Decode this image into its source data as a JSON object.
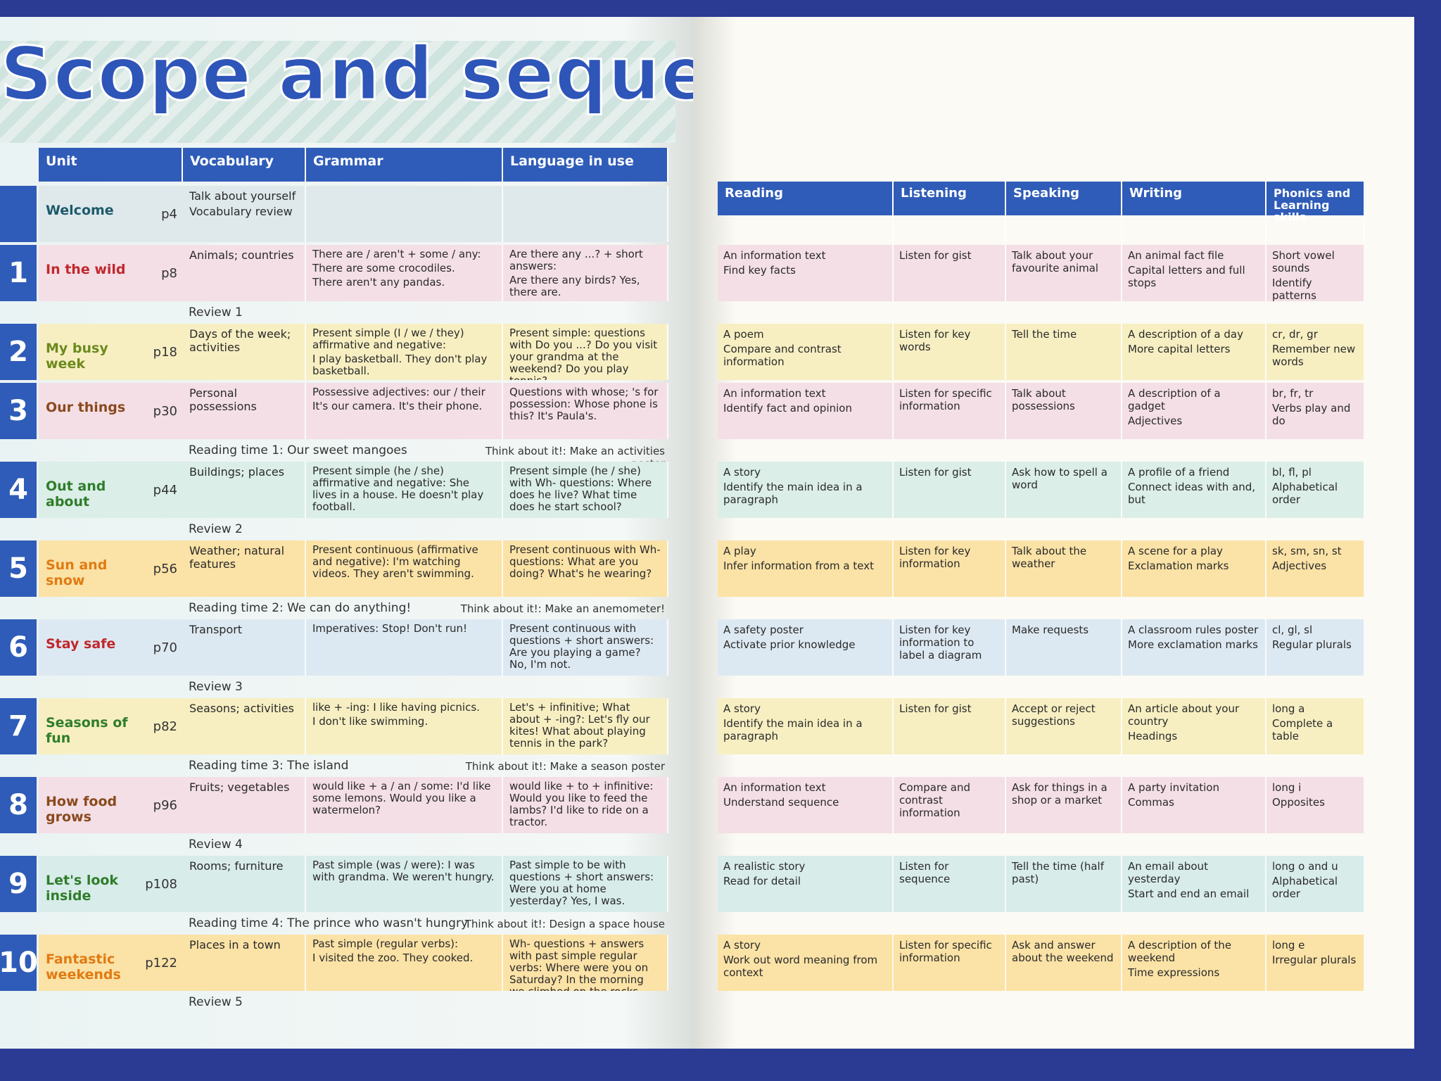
{
  "title": "Scope and sequence",
  "left_headers": [
    "Unit",
    "Vocabulary",
    "Grammar",
    "Language in use"
  ],
  "right_headers": [
    "Reading",
    "Listening",
    "Speaking",
    "Writing",
    "Phonics and Learning skills"
  ],
  "units": [
    {
      "name": "Welcome",
      "page": "p4",
      "vocabulary": [
        "Talk about yourself",
        "Vocabulary review"
      ]
    },
    {
      "number": "1",
      "name": "In the wild",
      "page": "p8",
      "vocabulary": [
        "Animals; countries"
      ],
      "grammar": [
        "There are / aren't + some / any:",
        "There are some crocodiles.",
        "There aren't any pandas."
      ],
      "language": [
        "Are there any ...? + short answers:",
        "Are there any birds? Yes, there are."
      ],
      "reading": [
        "An information text",
        "Find key facts"
      ],
      "listening": [
        "Listen for gist"
      ],
      "speaking": [
        "Talk about your favourite animal"
      ],
      "writing": [
        "An animal fact file",
        "Capital letters and full stops"
      ],
      "phonics": [
        "Short vowel sounds",
        "Identify patterns"
      ],
      "after": {
        "text": "Review 1"
      }
    },
    {
      "number": "2",
      "name": "My busy week",
      "page": "p18",
      "vocabulary": [
        "Days of the week; activities"
      ],
      "grammar": [
        "Present simple (I / we / they) affirmative and negative:",
        "I play basketball. They don't play basketball."
      ],
      "language": [
        "Present simple: questions with Do you ...? Do you visit your grandma at the weekend? Do you play tennis?"
      ],
      "reading": [
        "A poem",
        "Compare and contrast information"
      ],
      "listening": [
        "Listen for key words"
      ],
      "speaking": [
        "Tell the time"
      ],
      "writing": [
        "A description of a day",
        "More capital letters"
      ],
      "phonics": [
        "cr, dr, gr",
        "Remember new words"
      ]
    },
    {
      "number": "3",
      "name": "Our things",
      "page": "p30",
      "vocabulary": [
        "Personal possessions"
      ],
      "grammar": [
        "Possessive adjectives: our / their",
        "It's our camera. It's their phone."
      ],
      "language": [
        "Questions with whose; 's for possession: Whose phone is this? It's Paula's."
      ],
      "reading": [
        "An information text",
        "Identify fact and opinion"
      ],
      "listening": [
        "Listen for specific information"
      ],
      "speaking": [
        "Talk about possessions"
      ],
      "writing": [
        "A description of a gadget",
        "Adjectives"
      ],
      "phonics": [
        "br, fr, tr",
        "Verbs play and do"
      ],
      "after": {
        "text": "Reading time 1: Our sweet mangoes",
        "think": "Think about it!: Make an activities poster"
      }
    },
    {
      "number": "4",
      "name": "Out and about",
      "page": "p44",
      "vocabulary": [
        "Buildings; places"
      ],
      "grammar": [
        "Present simple (he / she) affirmative and negative: She lives in a house. He doesn't play football."
      ],
      "language": [
        "Present simple (he / she) with Wh- questions: Where does he live? What time does he start school?"
      ],
      "reading": [
        "A story",
        "Identify the main idea in a paragraph"
      ],
      "listening": [
        "Listen for gist"
      ],
      "speaking": [
        "Ask how to spell a word"
      ],
      "writing": [
        "A profile of a friend",
        "Connect ideas with and, but"
      ],
      "phonics": [
        "bl, fl, pl",
        "Alphabetical order"
      ],
      "after": {
        "text": "Review 2"
      }
    },
    {
      "number": "5",
      "name": "Sun and snow",
      "page": "p56",
      "vocabulary": [
        "Weather; natural features"
      ],
      "grammar": [
        "Present continuous (affirmative and negative): I'm watching videos. They aren't swimming."
      ],
      "language": [
        "Present continuous with Wh- questions: What are you doing? What's he wearing?"
      ],
      "reading": [
        "A play",
        "Infer information from a text"
      ],
      "listening": [
        "Listen for key information"
      ],
      "speaking": [
        "Talk about the weather"
      ],
      "writing": [
        "A scene for a play",
        "Exclamation marks"
      ],
      "phonics": [
        "sk, sm, sn, st",
        "Adjectives"
      ],
      "after": {
        "text": "Reading time 2: We can do anything!",
        "think": "Think about it!: Make an anemometer!"
      }
    },
    {
      "number": "6",
      "name": "Stay safe",
      "page": "p70",
      "vocabulary": [
        "Transport"
      ],
      "grammar": [
        "Imperatives: Stop! Don't run!"
      ],
      "language": [
        "Present continuous with questions + short answers: Are you playing a game? No, I'm not."
      ],
      "reading": [
        "A safety poster",
        "Activate prior knowledge"
      ],
      "listening": [
        "Listen for key information to label a diagram"
      ],
      "speaking": [
        "Make requests"
      ],
      "writing": [
        "A classroom rules poster",
        "More exclamation marks"
      ],
      "phonics": [
        "cl, gl, sl",
        "Regular plurals"
      ],
      "after": {
        "text": "Review 3"
      }
    },
    {
      "number": "7",
      "name": "Seasons of fun",
      "page": "p82",
      "vocabulary": [
        "Seasons; activities"
      ],
      "grammar": [
        "like + -ing: I like having picnics.",
        "I don't like swimming."
      ],
      "language": [
        "Let's + infinitive; What about + -ing?: Let's fly our kites! What about playing tennis in the park?"
      ],
      "reading": [
        "A story",
        "Identify the main idea in a paragraph"
      ],
      "listening": [
        "Listen for gist"
      ],
      "speaking": [
        "Accept or reject suggestions"
      ],
      "writing": [
        "An article about your country",
        "Headings"
      ],
      "phonics": [
        "long a",
        "Complete a table"
      ],
      "after": {
        "text": "Reading time 3: The island",
        "think": "Think about it!: Make a season poster"
      }
    },
    {
      "number": "8",
      "name": "How food grows",
      "page": "p96",
      "vocabulary": [
        "Fruits; vegetables"
      ],
      "grammar": [
        "would like + a / an / some: I'd like some lemons. Would you like a watermelon?"
      ],
      "language": [
        "would like + to + infinitive: Would you like to feed the lambs? I'd like to ride on a tractor."
      ],
      "reading": [
        "An information text",
        "Understand sequence"
      ],
      "listening": [
        "Compare and contrast information"
      ],
      "speaking": [
        "Ask for things in a shop or a market"
      ],
      "writing": [
        "A party invitation",
        "Commas"
      ],
      "phonics": [
        "long i",
        "Opposites"
      ],
      "after": {
        "text": "Review 4"
      }
    },
    {
      "number": "9",
      "name": "Let's look inside",
      "page": "p108",
      "vocabulary": [
        "Rooms; furniture"
      ],
      "grammar": [
        "Past simple (was / were): I was with grandma. We weren't hungry."
      ],
      "language": [
        "Past simple to be with questions + short answers: Were you at home yesterday? Yes, I was."
      ],
      "reading": [
        "A realistic story",
        "Read for detail"
      ],
      "listening": [
        "Listen for sequence"
      ],
      "speaking": [
        "Tell the time (half past)"
      ],
      "writing": [
        "An email about yesterday",
        "Start and end an email"
      ],
      "phonics": [
        "long o and u",
        "Alphabetical order"
      ],
      "after": {
        "text": "Reading time 4: The prince who wasn't hungry",
        "think": "Think about it!: Design a space house"
      }
    },
    {
      "number": "10",
      "name": "Fantastic weekends",
      "page": "p122",
      "vocabulary": [
        "Places in a town"
      ],
      "grammar": [
        "Past simple (regular verbs):",
        "I visited the zoo. They cooked."
      ],
      "language": [
        "Wh- questions + answers with past simple regular verbs: Where were you on Saturday? In the morning we climbed on the rocks."
      ],
      "reading": [
        "A story",
        "Work out word meaning from context"
      ],
      "listening": [
        "Listen for specific information"
      ],
      "speaking": [
        "Ask and answer about the weekend"
      ],
      "writing": [
        "A description of the weekend",
        "Time expressions"
      ],
      "phonics": [
        "long e",
        "Irregular plurals"
      ],
      "after": {
        "text": "Review 5"
      }
    }
  ]
}
